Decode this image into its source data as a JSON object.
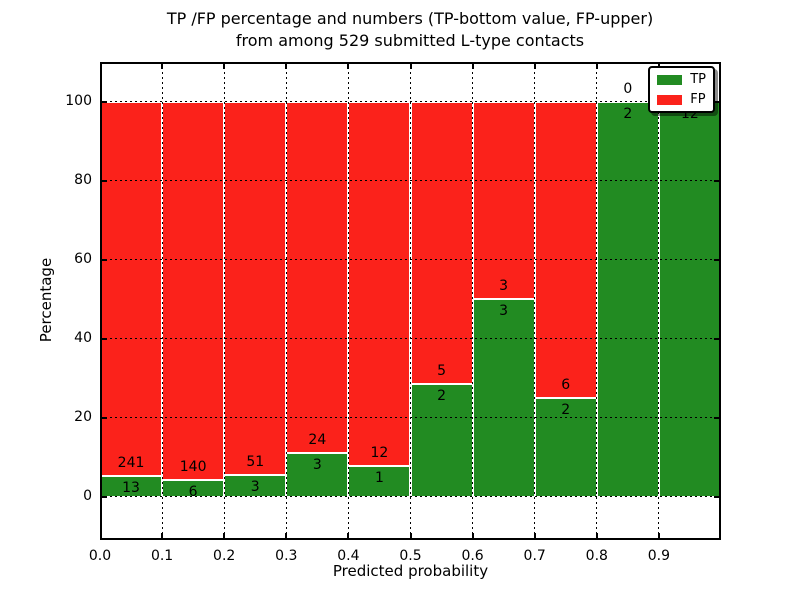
{
  "figure": {
    "title_lines": [
      "TP /FP percentage and numbers (TP-bottom value, FP-upper)",
      "from among 529 submitted L-type contacts"
    ]
  },
  "chart_data": {
    "type": "bar",
    "stacked": true,
    "normalized_to_percent": true,
    "title": "TP /FP percentage and numbers (TP-bottom value, FP-upper) from among 529 submitted L-type contacts",
    "xlabel": "Predicted probability",
    "ylabel": "Percentage",
    "total_contacts": 529,
    "bins": [
      {
        "range": [
          0.0,
          0.1
        ],
        "tp": 13,
        "fp": 241
      },
      {
        "range": [
          0.1,
          0.2
        ],
        "tp": 6,
        "fp": 140
      },
      {
        "range": [
          0.2,
          0.3
        ],
        "tp": 3,
        "fp": 51
      },
      {
        "range": [
          0.3,
          0.4
        ],
        "tp": 3,
        "fp": 24
      },
      {
        "range": [
          0.4,
          0.5
        ],
        "tp": 1,
        "fp": 12
      },
      {
        "range": [
          0.5,
          0.6
        ],
        "tp": 2,
        "fp": 5
      },
      {
        "range": [
          0.6,
          0.7
        ],
        "tp": 3,
        "fp": 3
      },
      {
        "range": [
          0.7,
          0.8
        ],
        "tp": 2,
        "fp": 6
      },
      {
        "range": [
          0.8,
          0.9
        ],
        "tp": 2,
        "fp": 0
      },
      {
        "range": [
          0.9,
          1.0
        ],
        "tp": 12,
        "fp": 0
      }
    ],
    "x_ticks": [
      "0.0",
      "0.1",
      "0.2",
      "0.3",
      "0.4",
      "0.5",
      "0.6",
      "0.7",
      "0.8",
      "0.9"
    ],
    "y_ticks": [
      "0",
      "20",
      "40",
      "60",
      "80",
      "100"
    ],
    "xlim": [
      0.0,
      1.0
    ],
    "ylim": [
      -11,
      110
    ],
    "grid": "dotted",
    "colors": {
      "tp": "#228b22",
      "fp": "#fb221b"
    },
    "legend": {
      "position": "upper right",
      "entries": [
        {
          "label": "TP",
          "color": "#228b22"
        },
        {
          "label": "FP",
          "color": "#fb221b"
        }
      ]
    }
  }
}
